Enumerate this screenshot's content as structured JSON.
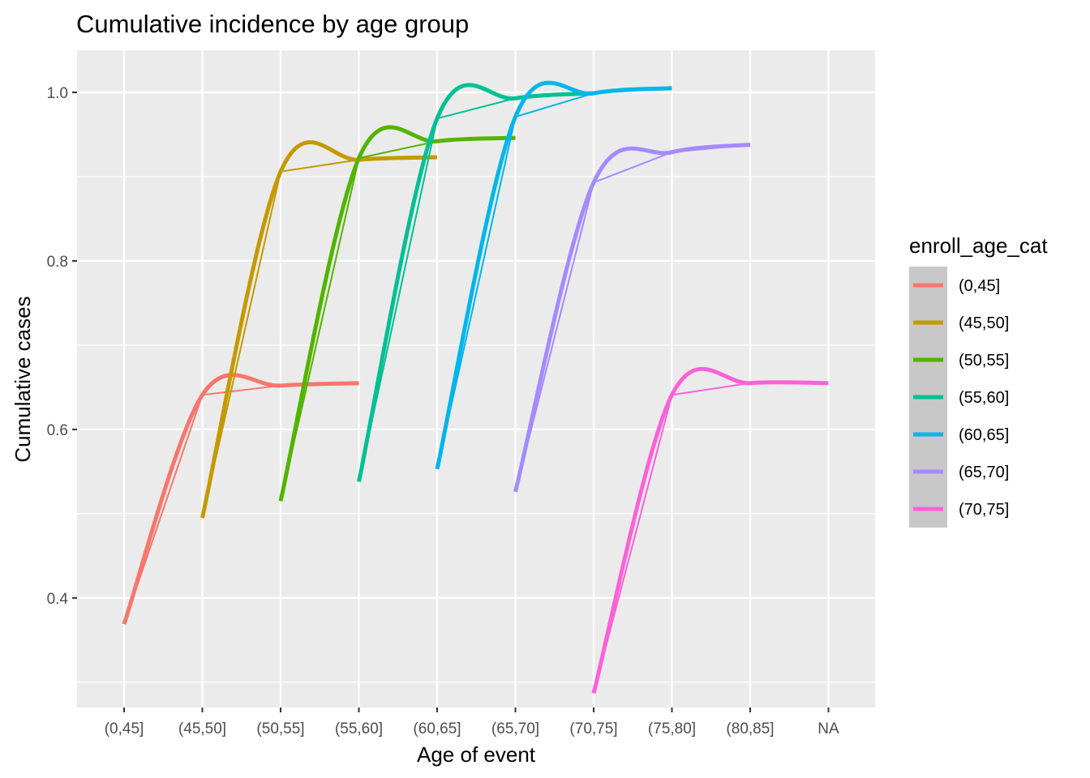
{
  "chart_data": {
    "type": "line",
    "title": "Cumulative incidence by age group",
    "xlabel": "Age of event",
    "ylabel": "Cumulative cases",
    "x_categories": [
      "(0,45]",
      "(45,50]",
      "(50,55]",
      "(55,60]",
      "(60,65]",
      "(65,70]",
      "(70,75]",
      "(75,80]",
      "(80,85]",
      "NA"
    ],
    "ylim": [
      0.27,
      1.05
    ],
    "y_ticks": [
      0.4,
      0.6,
      0.8,
      1.0
    ],
    "y_tick_labels": [
      "0.4",
      "0.6",
      "0.8",
      "1.0"
    ],
    "grid": true,
    "legend": {
      "title": "enroll_age_cat",
      "position": "right"
    },
    "series": [
      {
        "name": "(0,45]",
        "color": "#F8766D",
        "x": [
          "(0,45]",
          "(45,50]",
          "(50,55]",
          "(55,60]"
        ],
        "values": [
          0.369,
          0.641,
          0.652,
          0.655
        ]
      },
      {
        "name": "(45,50]",
        "color": "#C49A00",
        "x": [
          "(45,50]",
          "(50,55]",
          "(55,60]",
          "(60,65]"
        ],
        "values": [
          0.495,
          0.906,
          0.92,
          0.923
        ]
      },
      {
        "name": "(50,55]",
        "color": "#53B400",
        "x": [
          "(50,55]",
          "(55,60]",
          "(60,65]",
          "(65,70]"
        ],
        "values": [
          0.515,
          0.922,
          0.942,
          0.946
        ]
      },
      {
        "name": "(55,60]",
        "color": "#00C094",
        "x": [
          "(55,60]",
          "(60,65]",
          "(65,70]",
          "(70,75]"
        ],
        "values": [
          0.538,
          0.969,
          0.993,
          0.999
        ]
      },
      {
        "name": "(60,65]",
        "color": "#00B6EB",
        "x": [
          "(60,65]",
          "(65,70]",
          "(70,75]",
          "(75,80]"
        ],
        "values": [
          0.553,
          0.971,
          0.999,
          1.005
        ]
      },
      {
        "name": "(65,70]",
        "color": "#A58AFF",
        "x": [
          "(65,70]",
          "(70,75]",
          "(75,80]",
          "(80,85]"
        ],
        "values": [
          0.526,
          0.893,
          0.929,
          0.938
        ]
      },
      {
        "name": "(70,75]",
        "color": "#FB61D7",
        "x": [
          "(70,75]",
          "(75,80]",
          "(80,85]",
          "NA"
        ],
        "values": [
          0.287,
          0.641,
          0.655,
          0.655
        ]
      }
    ]
  }
}
